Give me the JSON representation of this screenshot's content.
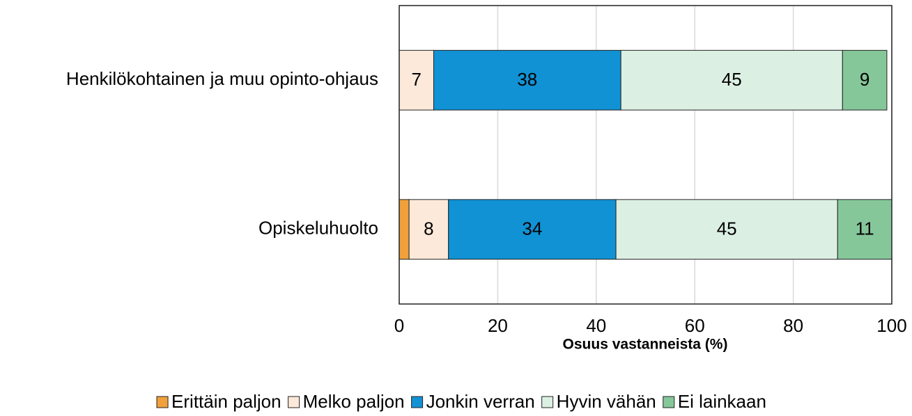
{
  "chart_data": {
    "type": "stacked-barh",
    "categories": [
      "Henkilökohtainen ja muu opinto-ohjaus",
      "Opiskeluhuolto"
    ],
    "series": [
      {
        "name": "Erittäin paljon",
        "color": "#f0a13c",
        "values": [
          0,
          2
        ]
      },
      {
        "name": "Melko paljon",
        "color": "#fde9d9",
        "values": [
          7,
          8
        ]
      },
      {
        "name": "Jonkin verran",
        "color": "#1192d4",
        "values": [
          38,
          34
        ]
      },
      {
        "name": "Hyvin vähän",
        "color": "#dcefe3",
        "values": [
          45,
          45
        ]
      },
      {
        "name": "Ei lainkaan",
        "color": "#86c79a",
        "values": [
          9,
          11
        ]
      }
    ],
    "xlabel": "Osuus vastanneista (%)",
    "xlim": [
      0,
      100
    ],
    "xticks": [
      0,
      20,
      40,
      60,
      80,
      100
    ],
    "grid": true,
    "legend": "bottom"
  }
}
